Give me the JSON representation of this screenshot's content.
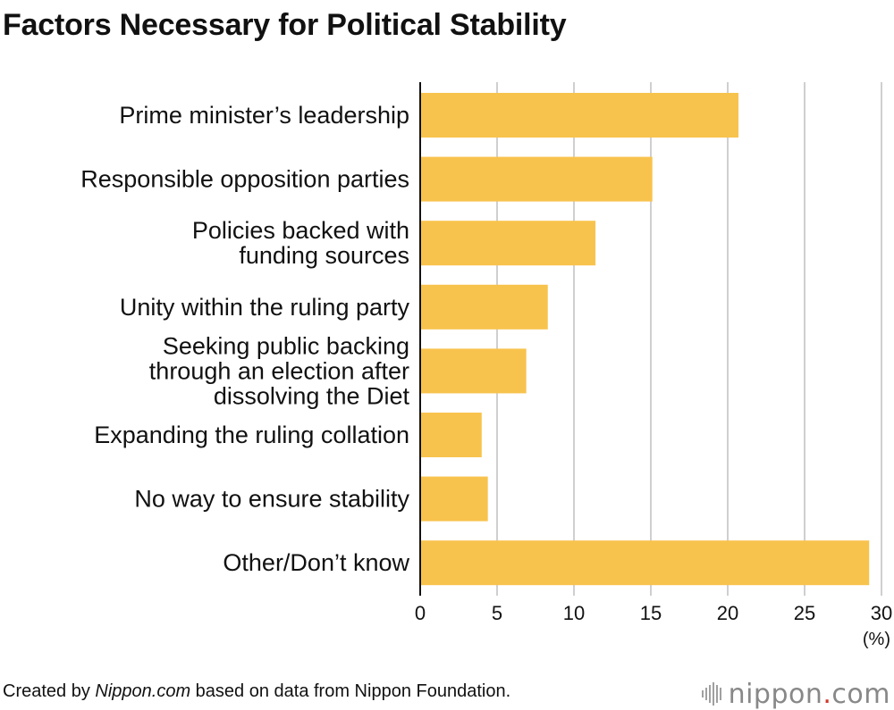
{
  "title": "Factors Necessary for Political Stability",
  "footer": {
    "prefix": "Created by ",
    "source_italic": "Nippon.com",
    "suffix": " based on data from Nippon Foundation."
  },
  "logo": {
    "name": "nippon",
    "dot": ".",
    "tld": "com"
  },
  "colors": {
    "bar": "#f8c34d",
    "grid": "#cfcfcf",
    "axis": "#111111"
  },
  "chart_data": {
    "type": "bar",
    "orientation": "horizontal",
    "categories": [
      [
        "Prime minister’s leadership"
      ],
      [
        "Responsible opposition parties"
      ],
      [
        "Policies backed with",
        "funding sources"
      ],
      [
        "Unity within the ruling party"
      ],
      [
        "Seeking public backing",
        "through an election after",
        "dissolving the Diet"
      ],
      [
        "Expanding the ruling collation"
      ],
      [
        "No way to ensure stability"
      ],
      [
        "Other/Don’t know"
      ]
    ],
    "values": [
      20.7,
      15.1,
      11.4,
      8.3,
      6.9,
      4.0,
      4.4,
      29.2
    ],
    "xlim": [
      0,
      30
    ],
    "xticks": [
      0,
      5,
      10,
      15,
      20,
      25,
      30
    ],
    "unit": "(%)",
    "grid": true
  }
}
